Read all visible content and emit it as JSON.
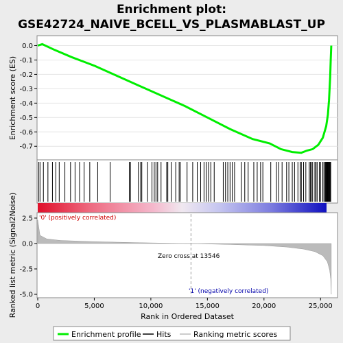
{
  "chart_data": {
    "type": "line",
    "title_line1": "Enrichment plot:",
    "title_line2": "GSE42724_NAIVE_BCELL_VS_PLASMABLAST_UP",
    "es_panel": {
      "ylabel": "Enrichment score (ES)",
      "ylim": [
        -0.78,
        0.05
      ],
      "yticks": [
        "0.0",
        "-0.1",
        "-0.2",
        "-0.3",
        "-0.4",
        "-0.5",
        "-0.6",
        "-0.7"
      ],
      "ytick_values": [
        0.0,
        -0.1,
        -0.2,
        -0.3,
        -0.4,
        -0.5,
        -0.6,
        -0.7
      ],
      "color": "#00ee00",
      "x": [
        0,
        400,
        1500,
        3000,
        5000,
        7000,
        9000,
        11000,
        13000,
        15000,
        17000,
        19000,
        20500,
        21500,
        22500,
        23300,
        23800,
        24300,
        24800,
        25200,
        25500,
        25650,
        25750,
        25850,
        25900,
        25950
      ],
      "y": [
        0.0,
        0.01,
        -0.03,
        -0.08,
        -0.14,
        -0.21,
        -0.28,
        -0.35,
        -0.42,
        -0.5,
        -0.58,
        -0.65,
        -0.68,
        -0.72,
        -0.74,
        -0.745,
        -0.73,
        -0.72,
        -0.69,
        -0.64,
        -0.56,
        -0.48,
        -0.38,
        -0.22,
        -0.1,
        0.0
      ]
    },
    "hits_panel": {
      "hit_positions": [
        80,
        200,
        500,
        900,
        1300,
        1600,
        1900,
        2400,
        2900,
        3300,
        3700,
        4100,
        4600,
        5300,
        6400,
        8100,
        8200,
        8900,
        9100,
        9200,
        9700,
        10100,
        10300,
        10450,
        10600,
        10900,
        11400,
        11500,
        11800,
        12200,
        12500,
        12600,
        13200,
        13700,
        14100,
        14400,
        14700,
        14900,
        15100,
        15300,
        15600,
        16400,
        16600,
        16800,
        17000,
        17200,
        17400,
        18000,
        18300,
        18600,
        19100,
        19400,
        19700,
        19900,
        20600,
        21100,
        21300,
        21600,
        22000,
        22200,
        22500,
        22700,
        23000,
        23200,
        23300,
        23500,
        23700,
        24000,
        24100,
        24200,
        24300,
        24500,
        24600,
        24700,
        24900,
        25000,
        25200,
        25300,
        25400,
        25450,
        25500,
        25550,
        25600,
        25650,
        25700,
        25750,
        25800,
        25850,
        25900
      ]
    },
    "metric_panel": {
      "ylabel": "Ranked list metric (Signal2Noise)",
      "ylim": [
        -5.2,
        2.9
      ],
      "yticks": [
        "2.5",
        "0.0",
        "-2.5",
        "-5.0"
      ],
      "ytick_values": [
        2.5,
        0.0,
        -2.5,
        -5.0
      ],
      "x": [
        0,
        200,
        800,
        2000,
        5000,
        9000,
        13546,
        17000,
        20000,
        22000,
        23500,
        24500,
        25200,
        25600,
        25800,
        25900,
        25950
      ],
      "y": [
        2.3,
        0.8,
        0.45,
        0.3,
        0.18,
        0.08,
        0.0,
        -0.1,
        -0.2,
        -0.35,
        -0.55,
        -0.8,
        -1.2,
        -1.8,
        -2.6,
        -3.5,
        -5.0
      ],
      "pos_label": "'0' (positively correlated)",
      "neg_label": "'1' (negatively correlated)",
      "zero_cross_label": "Zero cross at 13546",
      "zero_cross": 13546
    },
    "xlabel": "Rank in Ordered Dataset",
    "xlim": [
      0,
      26500
    ],
    "xticks": [
      "0",
      "5,000",
      "10,000",
      "15,000",
      "20,000",
      "25,000"
    ],
    "xtick_values": [
      0,
      5000,
      10000,
      15000,
      20000,
      25000
    ],
    "legend": [
      {
        "label": "Enrichment profile",
        "color": "#00ee00"
      },
      {
        "label": "Hits",
        "color": "#000000"
      },
      {
        "label": "Ranking metric scores",
        "color": "#bbbbbb"
      }
    ]
  }
}
